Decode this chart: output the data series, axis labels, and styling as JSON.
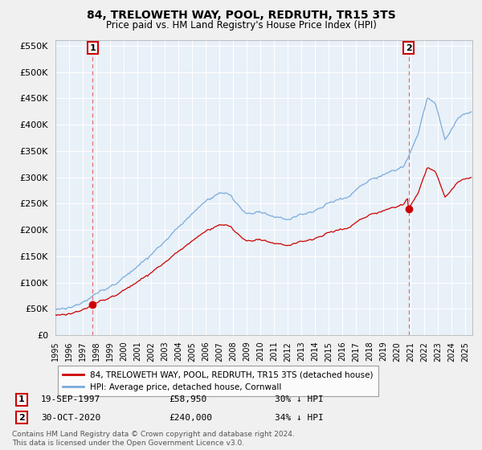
{
  "title": "84, TRELOWETH WAY, POOL, REDRUTH, TR15 3TS",
  "subtitle": "Price paid vs. HM Land Registry's House Price Index (HPI)",
  "legend_line1": "84, TRELOWETH WAY, POOL, REDRUTH, TR15 3TS (detached house)",
  "legend_line2": "HPI: Average price, detached house, Cornwall",
  "table": [
    {
      "num": "1",
      "date": "19-SEP-1997",
      "price": "£58,950",
      "hpi": "30% ↓ HPI"
    },
    {
      "num": "2",
      "date": "30-OCT-2020",
      "price": "£240,000",
      "hpi": "34% ↓ HPI"
    }
  ],
  "footnote": "Contains HM Land Registry data © Crown copyright and database right 2024.\nThis data is licensed under the Open Government Licence v3.0.",
  "price_paid_color": "#cc0000",
  "hpi_color": "#7aabdc",
  "vline_color": "#e87070",
  "marker_color": "#cc0000",
  "point1_x": 1997.72,
  "point1_y": 58950,
  "point2_x": 2020.83,
  "point2_y": 240000,
  "ylim": [
    0,
    560000
  ],
  "xlim_start": 1995.0,
  "xlim_end": 2025.5,
  "yticks": [
    0,
    50000,
    100000,
    150000,
    200000,
    250000,
    300000,
    350000,
    400000,
    450000,
    500000,
    550000
  ],
  "xticks": [
    1995,
    1996,
    1997,
    1998,
    1999,
    2000,
    2001,
    2002,
    2003,
    2004,
    2005,
    2006,
    2007,
    2008,
    2009,
    2010,
    2011,
    2012,
    2013,
    2014,
    2015,
    2016,
    2017,
    2018,
    2019,
    2020,
    2021,
    2022,
    2023,
    2024,
    2025
  ],
  "plot_bg_color": "#e8f0f8",
  "background_color": "#f0f0f0",
  "grid_color": "#ffffff"
}
